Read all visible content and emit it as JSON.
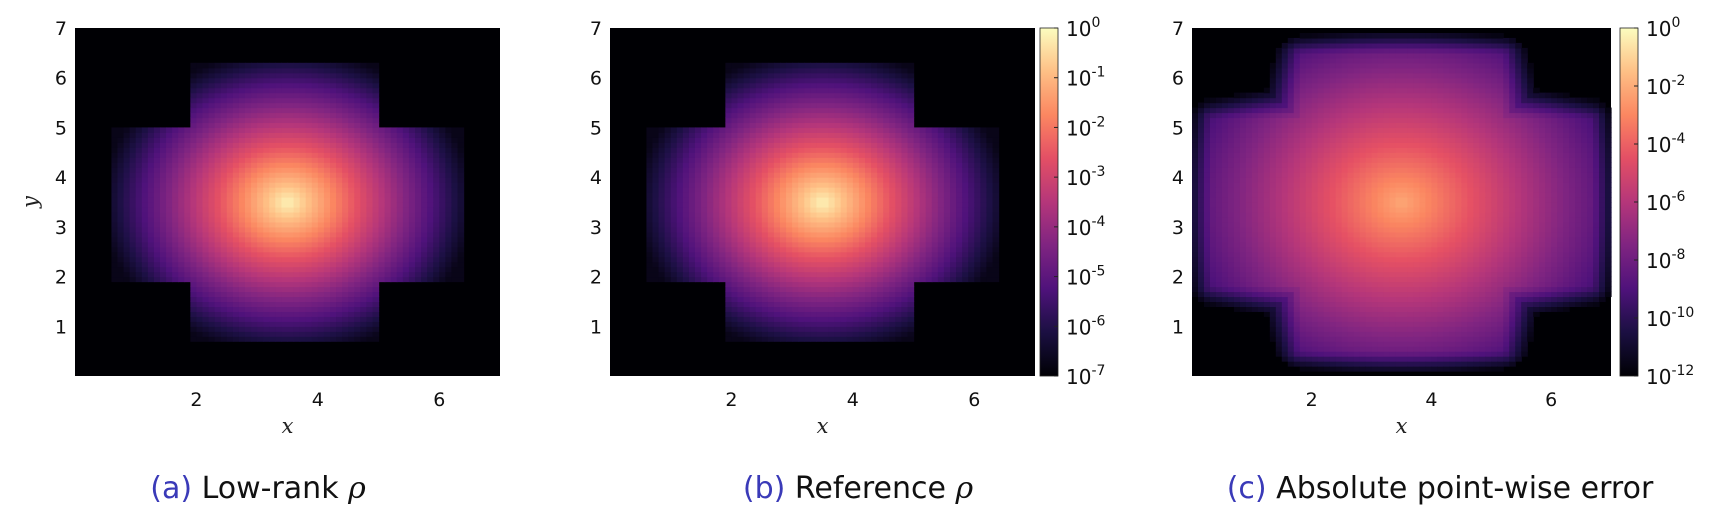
{
  "chart_data": [
    {
      "type": "heatmap",
      "panel": "a",
      "caption_tag": "(a)",
      "caption_text": "Low-rank ",
      "caption_symbol": "ρ",
      "xlabel": "x",
      "ylabel": "y",
      "xlim": [
        0,
        7
      ],
      "ylim": [
        0,
        7
      ],
      "xticks": [
        "2",
        "4",
        "6"
      ],
      "yticks": [
        "1",
        "2",
        "3",
        "4",
        "5",
        "6",
        "7"
      ],
      "colorbar": null,
      "field": {
        "shape": "cross-of-squares",
        "center": [
          3.5,
          3.5
        ],
        "arm_halfwidth": 1.0,
        "arm_extent": 2.7,
        "peak_value": 1.0,
        "edge_value": 1e-07
      }
    },
    {
      "type": "heatmap",
      "panel": "b",
      "caption_tag": "(b)",
      "caption_text": "Reference ",
      "caption_symbol": "ρ",
      "xlabel": "x",
      "ylabel": "",
      "xlim": [
        0,
        7
      ],
      "ylim": [
        0,
        7
      ],
      "xticks": [
        "2",
        "4",
        "6"
      ],
      "yticks": [
        "1",
        "2",
        "3",
        "4",
        "5",
        "6",
        "7"
      ],
      "colorbar": {
        "colormap": "magma",
        "scale": "log",
        "range": [
          1e-07,
          1
        ],
        "ticks": [
          {
            "base": "10",
            "exp": "0"
          },
          {
            "base": "10",
            "exp": "-1"
          },
          {
            "base": "10",
            "exp": "-2"
          },
          {
            "base": "10",
            "exp": "-3"
          },
          {
            "base": "10",
            "exp": "-4"
          },
          {
            "base": "10",
            "exp": "-5"
          },
          {
            "base": "10",
            "exp": "-6"
          },
          {
            "base": "10",
            "exp": "-7"
          }
        ]
      },
      "field": {
        "shape": "cross-of-squares",
        "center": [
          3.5,
          3.5
        ],
        "arm_halfwidth": 1.0,
        "arm_extent": 2.7,
        "peak_value": 1.0,
        "edge_value": 1e-07
      }
    },
    {
      "type": "heatmap",
      "panel": "c",
      "caption_tag": "(c)",
      "caption_text": "Absolute point-wise error",
      "caption_symbol": "",
      "xlabel": "x",
      "ylabel": "",
      "xlim": [
        0,
        7
      ],
      "ylim": [
        0,
        7
      ],
      "xticks": [
        "2",
        "4",
        "6"
      ],
      "yticks": [
        "1",
        "2",
        "3",
        "4",
        "5",
        "6",
        "7"
      ],
      "colorbar": {
        "colormap": "magma",
        "scale": "log",
        "range": [
          1e-12,
          1
        ],
        "ticks": [
          {
            "base": "10",
            "exp": "0"
          },
          {
            "base": "10",
            "exp": "-2"
          },
          {
            "base": "10",
            "exp": "-4"
          },
          {
            "base": "10",
            "exp": "-6"
          },
          {
            "base": "10",
            "exp": "-8"
          },
          {
            "base": "10",
            "exp": "-10"
          },
          {
            "base": "10",
            "exp": "-12"
          }
        ]
      },
      "field": {
        "shape": "error-cross",
        "center": [
          3.5,
          3.5
        ],
        "peak_value": 0.01,
        "edge_value": 1e-12
      }
    }
  ]
}
